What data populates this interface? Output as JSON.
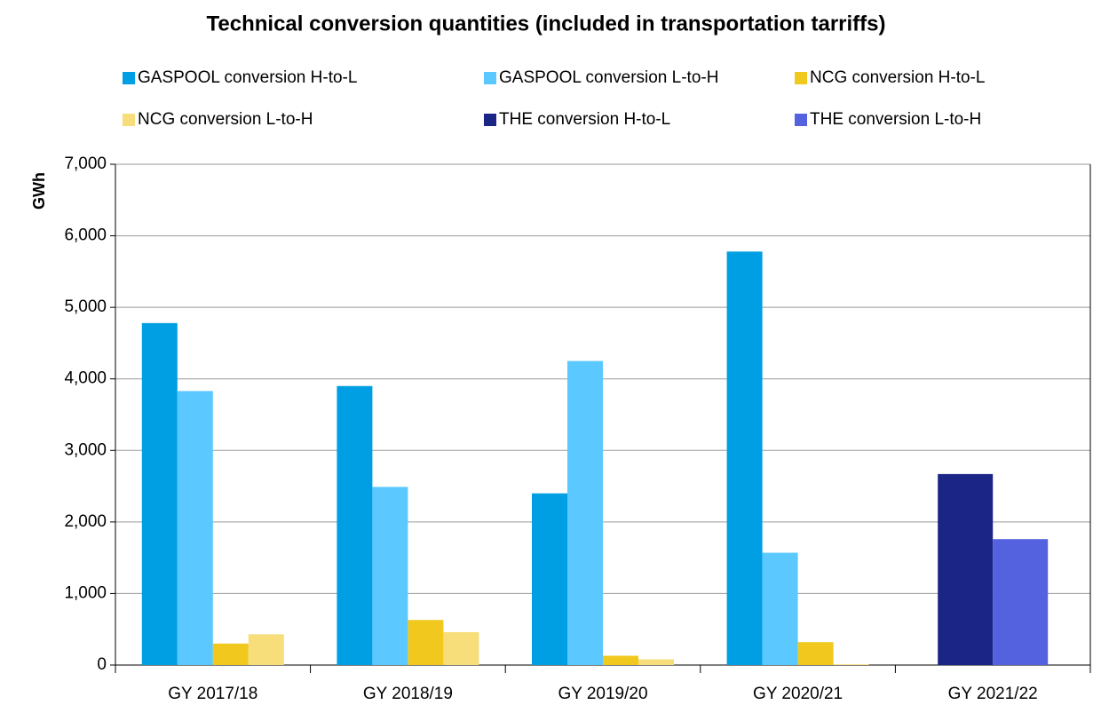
{
  "chart_data": {
    "type": "bar",
    "title": "Technical conversion quantities (included in transportation tarriffs)",
    "y_label": "GWh",
    "categories": [
      "GY 2017/18",
      "GY 2018/19",
      "GY 2019/20",
      "GY 2020/21",
      "GY 2021/22"
    ],
    "series": [
      {
        "name": "GASPOOL conversion H-to-L",
        "color": "#009fe3",
        "values": [
          4780,
          3900,
          2400,
          5780,
          null
        ]
      },
      {
        "name": "GASPOOL conversion L-to-H",
        "color": "#5bc8ff",
        "values": [
          3830,
          2490,
          4250,
          1570,
          null
        ]
      },
      {
        "name": "NCG conversion H-to-L",
        "color": "#f0c81e",
        "values": [
          300,
          630,
          130,
          320,
          null
        ]
      },
      {
        "name": "NCG conversion L-to-H",
        "color": "#f7de7a",
        "values": [
          430,
          460,
          80,
          10,
          null
        ]
      },
      {
        "name": "THE conversion H-to-L",
        "color": "#1b2586",
        "values": [
          null,
          null,
          null,
          null,
          2670
        ]
      },
      {
        "name": "THE conversion L-to-H",
        "color": "#5462e0",
        "values": [
          null,
          null,
          null,
          null,
          1760
        ]
      }
    ],
    "ylim": [
      0,
      7000
    ],
    "yticks": [
      0,
      {
        "value": 1000,
        "label": "1,000"
      },
      {
        "value": 2000,
        "label": "2,000"
      },
      {
        "value": 3000,
        "label": "3,000"
      },
      {
        "value": 4000,
        "label": "4,000"
      },
      {
        "value": 5000,
        "label": "5,000"
      },
      {
        "value": 6000,
        "label": "6,000"
      },
      {
        "value": 7000,
        "label": "7,000"
      }
    ],
    "grid": true
  }
}
